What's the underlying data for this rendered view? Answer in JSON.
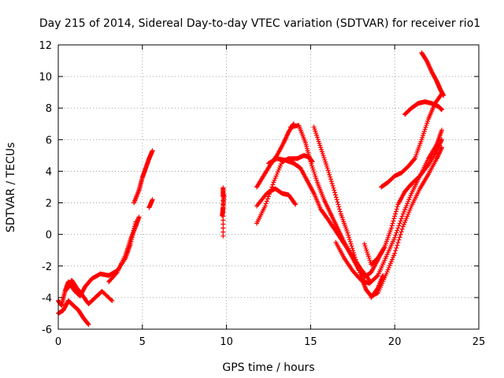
{
  "chart_data": {
    "type": "scatter",
    "title": "Day 215 of 2014, Sidereal Day-to-day VTEC variation (SDTVAR) for receiver rio1",
    "xlabel": "GPS time / hours",
    "ylabel": "SDTVAR / TECUs",
    "xlim": [
      0,
      25
    ],
    "ylim": [
      -6,
      12
    ],
    "xticks": [
      0,
      5,
      10,
      15,
      20,
      25
    ],
    "yticks": [
      -6,
      -4,
      -2,
      0,
      2,
      4,
      6,
      8,
      10,
      12
    ],
    "grid": true,
    "marker": "+",
    "color": "#ff0000",
    "series": [
      {
        "name": "s1",
        "x": [
          0.0,
          0.2,
          0.4,
          0.6,
          0.8,
          1.0,
          1.3,
          1.6,
          2.0,
          2.5,
          3.0,
          3.5,
          4.0,
          4.3,
          4.6
        ],
        "y": [
          -4.2,
          -4.5,
          -3.6,
          -3.0,
          -3.3,
          -3.6,
          -3.9,
          -3.3,
          -2.8,
          -2.5,
          -2.6,
          -2.3,
          -1.5,
          -0.6,
          0.8
        ]
      },
      {
        "name": "s2",
        "x": [
          0.0,
          0.3,
          0.6,
          0.9,
          1.2,
          1.5,
          1.8
        ],
        "y": [
          -5.0,
          -4.8,
          -4.2,
          -4.5,
          -4.8,
          -5.3,
          -5.7
        ]
      },
      {
        "name": "s3",
        "x": [
          0.5,
          0.8,
          1.1,
          1.4,
          1.8,
          2.2,
          2.6,
          3.2
        ],
        "y": [
          -3.5,
          -2.9,
          -3.4,
          -3.8,
          -4.4,
          -4.0,
          -3.6,
          -4.2
        ]
      },
      {
        "name": "s4",
        "x": [
          3.0,
          3.5,
          4.0,
          4.3,
          4.6,
          4.8
        ],
        "y": [
          -3.0,
          -2.4,
          -1.3,
          -0.3,
          0.5,
          1.1
        ]
      },
      {
        "name": "s5",
        "x": [
          4.5,
          4.8,
          5.0,
          5.2,
          5.4,
          5.6
        ],
        "y": [
          2.0,
          2.8,
          3.6,
          4.2,
          4.8,
          5.3
        ]
      },
      {
        "name": "s6",
        "x": [
          5.4,
          5.6
        ],
        "y": [
          1.7,
          2.2
        ]
      },
      {
        "name": "s7",
        "x": [
          9.75,
          9.8,
          9.85
        ],
        "y": [
          1.2,
          1.7,
          2.5
        ]
      },
      {
        "name": "s8",
        "x": [
          9.8,
          9.8,
          9.8
        ],
        "y": [
          2.95,
          2.4,
          -0.1
        ]
      },
      {
        "name": "s9",
        "x": [
          11.8,
          12.2,
          12.6,
          13.0,
          13.4,
          13.7,
          14.0
        ],
        "y": [
          3.0,
          3.7,
          4.4,
          5.0,
          5.8,
          6.5,
          7.0
        ]
      },
      {
        "name": "s10",
        "x": [
          11.8,
          12.3,
          12.8,
          13.3,
          13.7,
          14.2,
          14.6,
          14.9,
          15.1
        ],
        "y": [
          0.7,
          1.8,
          3.3,
          4.6,
          4.8,
          4.8,
          5.0,
          4.9,
          4.6
        ]
      },
      {
        "name": "s11",
        "x": [
          11.8,
          12.4,
          12.9,
          13.3,
          13.7,
          14.1
        ],
        "y": [
          1.8,
          2.6,
          2.9,
          2.6,
          2.5,
          1.9
        ]
      },
      {
        "name": "s12",
        "x": [
          12.5,
          13.0,
          13.5,
          14.0,
          14.4,
          14.8,
          15.2,
          15.6,
          16.0,
          16.5,
          17.0,
          17.5,
          18.0,
          18.5
        ],
        "y": [
          4.5,
          4.8,
          4.7,
          4.5,
          4.2,
          3.4,
          2.6,
          1.6,
          1.0,
          0.2,
          -0.6,
          -1.4,
          -2.2,
          -2.9
        ]
      },
      {
        "name": "s13",
        "x": [
          13.8,
          14.3,
          14.7,
          15.0,
          15.4,
          15.8,
          16.2,
          16.6,
          17.0,
          17.4,
          17.8,
          18.2,
          18.6,
          19.0,
          19.4
        ],
        "y": [
          6.8,
          6.9,
          5.8,
          4.6,
          3.3,
          2.2,
          1.3,
          0.4,
          -0.5,
          -1.3,
          -2.1,
          -2.7,
          -2.4,
          -1.6,
          -0.8
        ]
      },
      {
        "name": "s14",
        "x": [
          15.2,
          15.6,
          16.0,
          16.4,
          16.8,
          17.2,
          17.6,
          18.0,
          18.3,
          18.6,
          19.0,
          19.5,
          20.0,
          20.5,
          21.0,
          21.5,
          22.0,
          22.5,
          22.8
        ],
        "y": [
          6.8,
          5.5,
          4.2,
          2.8,
          1.3,
          0.1,
          -1.3,
          -2.7,
          -3.5,
          -3.9,
          -3.7,
          -2.5,
          -1.2,
          0.5,
          1.8,
          2.9,
          3.8,
          4.8,
          5.5
        ]
      },
      {
        "name": "s15",
        "x": [
          16.5,
          17.0,
          17.5,
          18.0,
          18.5,
          19.0,
          19.5,
          20.0,
          20.5,
          21.0,
          21.5,
          22.0,
          22.5,
          22.8
        ],
        "y": [
          -0.5,
          -1.5,
          -2.3,
          -2.9,
          -3.1,
          -2.6,
          -1.4,
          -0.2,
          1.3,
          2.6,
          3.7,
          4.8,
          5.7,
          6.6
        ]
      },
      {
        "name": "s16",
        "x": [
          18.2,
          18.6,
          19.0,
          19.4,
          19.8,
          20.2,
          20.6,
          21.0,
          21.5,
          22.0,
          22.5,
          22.8
        ],
        "y": [
          -0.6,
          -1.9,
          -1.5,
          -0.8,
          0.4,
          1.9,
          2.7,
          3.2,
          3.7,
          4.4,
          5.3,
          6.0
        ]
      },
      {
        "name": "s17",
        "x": [
          18.6,
          19.0,
          19.3
        ],
        "y": [
          -4.0,
          -3.4,
          -2.6
        ]
      },
      {
        "name": "s18",
        "x": [
          19.2,
          19.6,
          20.0,
          20.4,
          20.8,
          21.2,
          21.6,
          22.0,
          22.4,
          22.8
        ],
        "y": [
          3.0,
          3.3,
          3.7,
          3.9,
          4.3,
          4.8,
          6.0,
          7.3,
          8.3,
          8.9
        ]
      },
      {
        "name": "s19",
        "x": [
          20.6,
          21.0,
          21.4,
          21.8,
          22.2,
          22.6,
          22.8
        ],
        "y": [
          7.6,
          8.0,
          8.3,
          8.4,
          8.3,
          8.1,
          7.9
        ]
      },
      {
        "name": "s20",
        "x": [
          21.6,
          21.9,
          22.2,
          22.5,
          22.7,
          22.9
        ],
        "y": [
          11.5,
          11.0,
          10.3,
          9.7,
          9.2,
          8.8
        ]
      }
    ]
  }
}
